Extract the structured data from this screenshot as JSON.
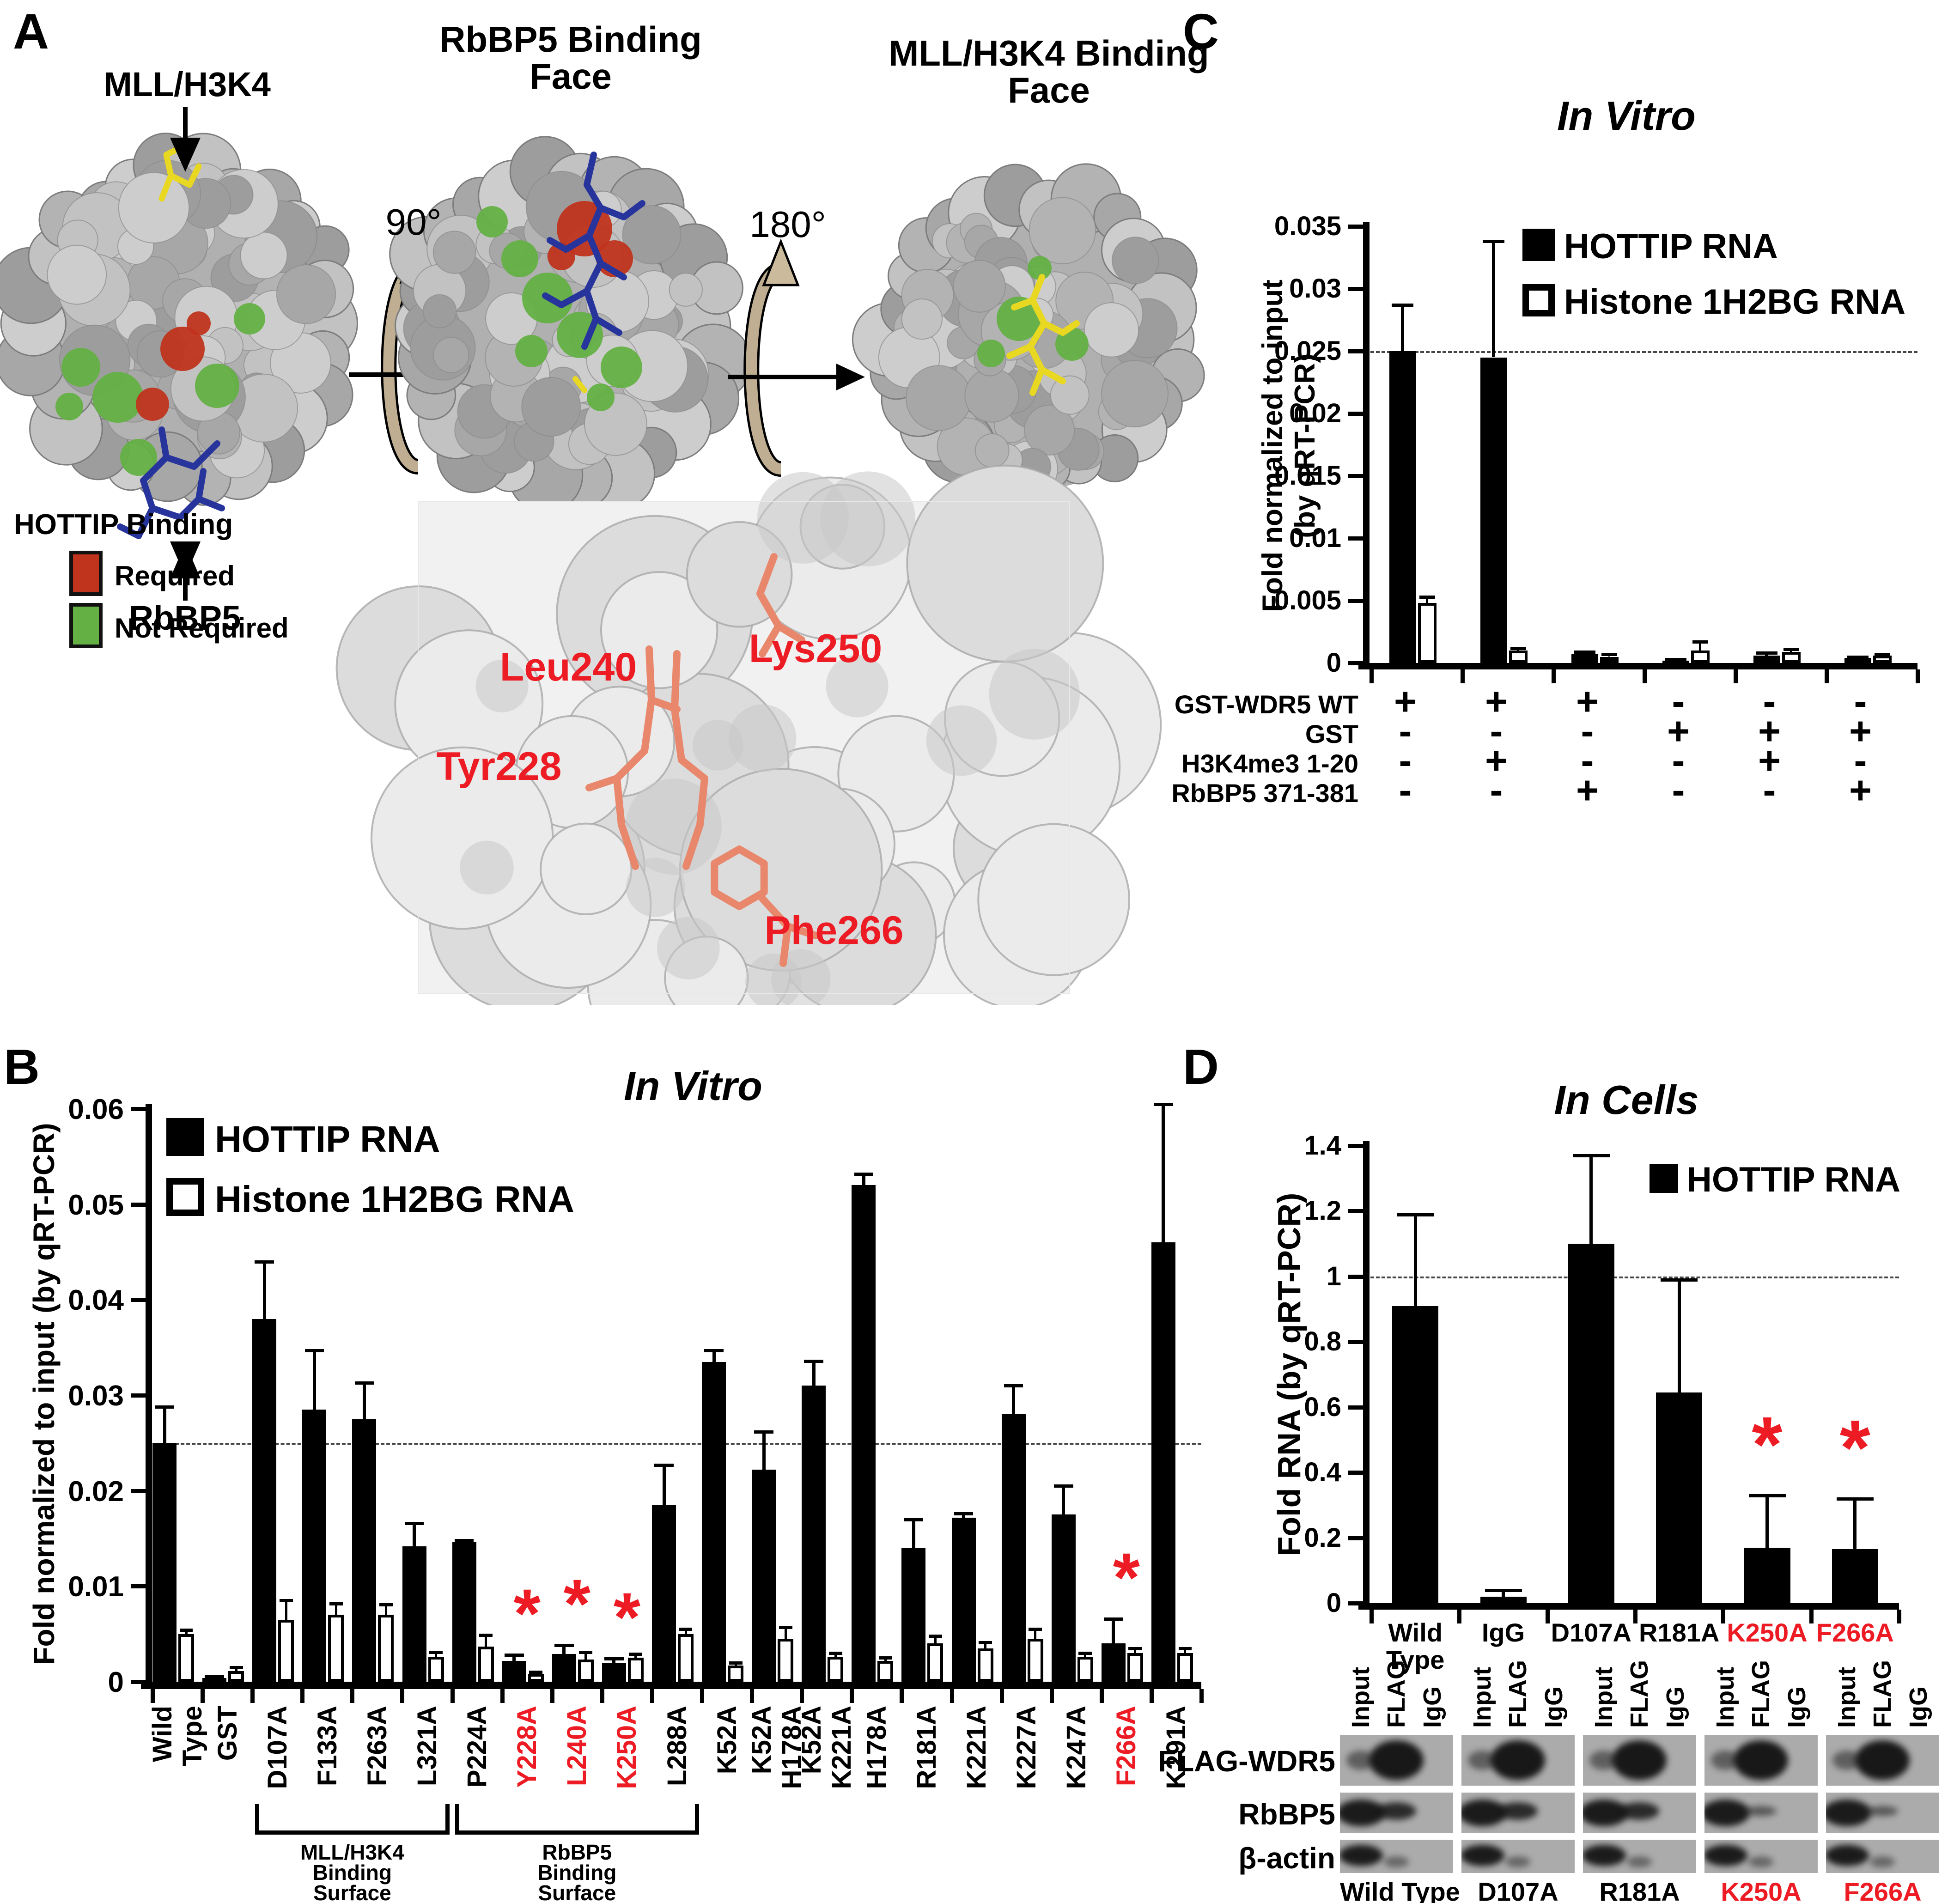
{
  "figure": {
    "panelA": {
      "label": "A",
      "mll_pointer": "MLL/H3K4",
      "rbbp5_pointer": "RbBP5",
      "rotation1": "90°",
      "rotation2": "180°",
      "face2_line1": "RbBP5 Binding",
      "face2_line2": "Face",
      "face3_line1": "MLL/H3K4 Binding",
      "face3_line2": "Face",
      "legend_title": "HOTTIP Binding",
      "legend_required": "Required",
      "legend_not_required": "Not Required",
      "required_color": "#c0341d",
      "not_required_color": "#64b045",
      "residues": {
        "tyr": "Tyr228",
        "leu": "Leu240",
        "lys": "Lys250",
        "phe": "Phe266"
      }
    },
    "panelB": {
      "label": "B"
    },
    "panelC": {
      "label": "C"
    },
    "panelD": {
      "label": "D"
    }
  },
  "accent_red": "#ed1c24",
  "chart_data": [
    {
      "id": "panelB",
      "type": "bar",
      "title": "In Vitro",
      "ylabel": "Fold normalized to input (by qRT-PCR)",
      "ylim": [
        0,
        0.06
      ],
      "yticks": [
        "0.06",
        "0.05",
        "0.04",
        "0.03",
        "0.02",
        "0.01",
        "0"
      ],
      "ytick_values": [
        0.06,
        0.05,
        0.04,
        0.03,
        0.02,
        0.01,
        0
      ],
      "reference_line": 0.025,
      "grid": false,
      "legend_position": "top-left",
      "legend": [
        {
          "label": "HOTTIP RNA",
          "style": "filled"
        },
        {
          "label": "Histone 1H2BG RNA",
          "style": "open"
        }
      ],
      "categories": [
        "Wild Type",
        "GST",
        "D107A",
        "F133A",
        "F263A",
        "L321A",
        "P224A",
        "Y228A",
        "L240A",
        "K250A",
        "L288A",
        "K52A",
        "K52A H178A",
        "K52A K221A",
        "H178A",
        "R181A",
        "K221A",
        "K227A",
        "K247A",
        "F266A",
        "K291A"
      ],
      "red_categories": [
        "Y228A",
        "L240A",
        "K250A",
        "F266A"
      ],
      "asterisk_categories": [
        "Y228A",
        "L240A",
        "K250A",
        "F266A"
      ],
      "series": [
        {
          "name": "HOTTIP RNA",
          "values": [
            0.025,
            0.0004,
            0.038,
            0.0285,
            0.0275,
            0.0142,
            0.0146,
            0.0022,
            0.0029,
            0.002,
            0.0185,
            0.0335,
            0.0222,
            0.031,
            0.052,
            0.014,
            0.0172,
            0.028,
            0.0175,
            0.004,
            0.046
          ],
          "errors": [
            0.0038,
            0.0002,
            0.006,
            0.0062,
            0.0038,
            0.0024,
            0.0002,
            0.0006,
            0.0009,
            0.0004,
            0.0042,
            0.0012,
            0.004,
            0.0026,
            0.0012,
            0.003,
            0.0004,
            0.003,
            0.003,
            0.0026,
            0.0145
          ]
        },
        {
          "name": "Histone 1H2BG RNA",
          "values": [
            0.005,
            0.0011,
            0.0065,
            0.007,
            0.007,
            0.0026,
            0.0037,
            0.0008,
            0.0023,
            0.0025,
            0.005,
            0.0017,
            0.0045,
            0.0026,
            0.0022,
            0.004,
            0.0035,
            0.0045,
            0.0026,
            0.003,
            0.003
          ],
          "errors": [
            0.0004,
            0.0004,
            0.002,
            0.0012,
            0.0011,
            0.0005,
            0.0012,
            0.0002,
            0.0008,
            0.0004,
            0.0005,
            0.0003,
            0.0012,
            0.0004,
            0.0003,
            0.0008,
            0.0006,
            0.001,
            0.0004,
            0.0005,
            0.0005
          ]
        }
      ],
      "group_brackets": [
        {
          "label_lines": [
            "MLL/H3K4",
            "Binding",
            "Surface"
          ],
          "from": "D107A",
          "to": "L321A"
        },
        {
          "label_lines": [
            "RbBP5",
            "Binding",
            "Surface"
          ],
          "from": "P224A",
          "to": "L288A"
        }
      ]
    },
    {
      "id": "panelC",
      "type": "bar",
      "title": "In Vitro",
      "ylabel_lines": [
        "Fold normalized to input",
        "(by qRT-PCR)"
      ],
      "ylim": [
        0,
        0.035
      ],
      "yticks": [
        "0.035",
        "0.03",
        "0.025",
        "0.02",
        "0.015",
        "0.01",
        "0.005",
        "0"
      ],
      "ytick_values": [
        0.035,
        0.03,
        0.025,
        0.02,
        0.015,
        0.01,
        0.005,
        0
      ],
      "reference_line": 0.025,
      "grid": false,
      "legend_position": "top-right",
      "legend": [
        {
          "label": "HOTTIP RNA",
          "style": "filled"
        },
        {
          "label": "Histone 1H2BG RNA",
          "style": "open"
        }
      ],
      "conditions_table": {
        "rows": [
          {
            "label": "GST-WDR5 WT",
            "values": [
              "+",
              "+",
              "+",
              "-",
              "-",
              "-"
            ]
          },
          {
            "label": "GST",
            "values": [
              "-",
              "-",
              "-",
              "+",
              "+",
              "+"
            ]
          },
          {
            "label": "H3K4me3 1-20",
            "values": [
              "-",
              "+",
              "-",
              "-",
              "+",
              "-"
            ]
          },
          {
            "label": "RbBP5 371-381",
            "values": [
              "-",
              "-",
              "+",
              "-",
              "-",
              "+"
            ]
          }
        ]
      },
      "series": [
        {
          "name": "HOTTIP RNA",
          "values": [
            0.025,
            0.0245,
            0.0007,
            0.0002,
            0.0006,
            0.0004
          ],
          "errors": [
            0.0037,
            0.0093,
            0.0002,
            0.0001,
            0.0002,
            0.0001
          ]
        },
        {
          "name": "Histone 1H2BG RNA",
          "values": [
            0.0048,
            0.001,
            0.0005,
            0.001,
            0.0009,
            0.0006
          ],
          "errors": [
            0.0005,
            0.0002,
            0.0002,
            0.0007,
            0.0002,
            0.0001
          ]
        }
      ]
    },
    {
      "id": "panelD",
      "type": "bar",
      "title": "In Cells",
      "ylabel": "Fold RNA (by qRT-PCR)",
      "ylim": [
        0,
        1.4
      ],
      "yticks": [
        "1.4",
        "1.2",
        "1",
        "0.8",
        "0.6",
        "0.4",
        "0.2",
        "0"
      ],
      "ytick_values": [
        1.4,
        1.2,
        1,
        0.8,
        0.6,
        0.4,
        0.2,
        0
      ],
      "reference_line": 1,
      "grid": false,
      "legend_position": "top-right",
      "legend": [
        {
          "label": "HOTTIP RNA",
          "style": "filled"
        }
      ],
      "categories": [
        "Wild Type",
        "IgG",
        "D107A",
        "R181A",
        "K250A",
        "F266A"
      ],
      "red_categories": [
        "K250A",
        "F266A"
      ],
      "asterisk_categories": [
        "K250A",
        "F266A"
      ],
      "series": [
        {
          "name": "HOTTIP RNA",
          "values": [
            0.91,
            0.02,
            1.1,
            0.645,
            0.17,
            0.165
          ],
          "errors": [
            0.28,
            0.02,
            0.27,
            0.345,
            0.16,
            0.155
          ]
        }
      ]
    }
  ],
  "blots": {
    "row_labels": [
      "FLAG-WDR5",
      "RbBP5",
      "β-actin"
    ],
    "lane_labels": [
      "Input",
      "FLAG",
      "IgG"
    ],
    "groups": [
      "Wild Type",
      "D107A",
      "R181A",
      "K250A",
      "F266A"
    ],
    "red_groups": [
      "K250A",
      "F266A"
    ]
  }
}
